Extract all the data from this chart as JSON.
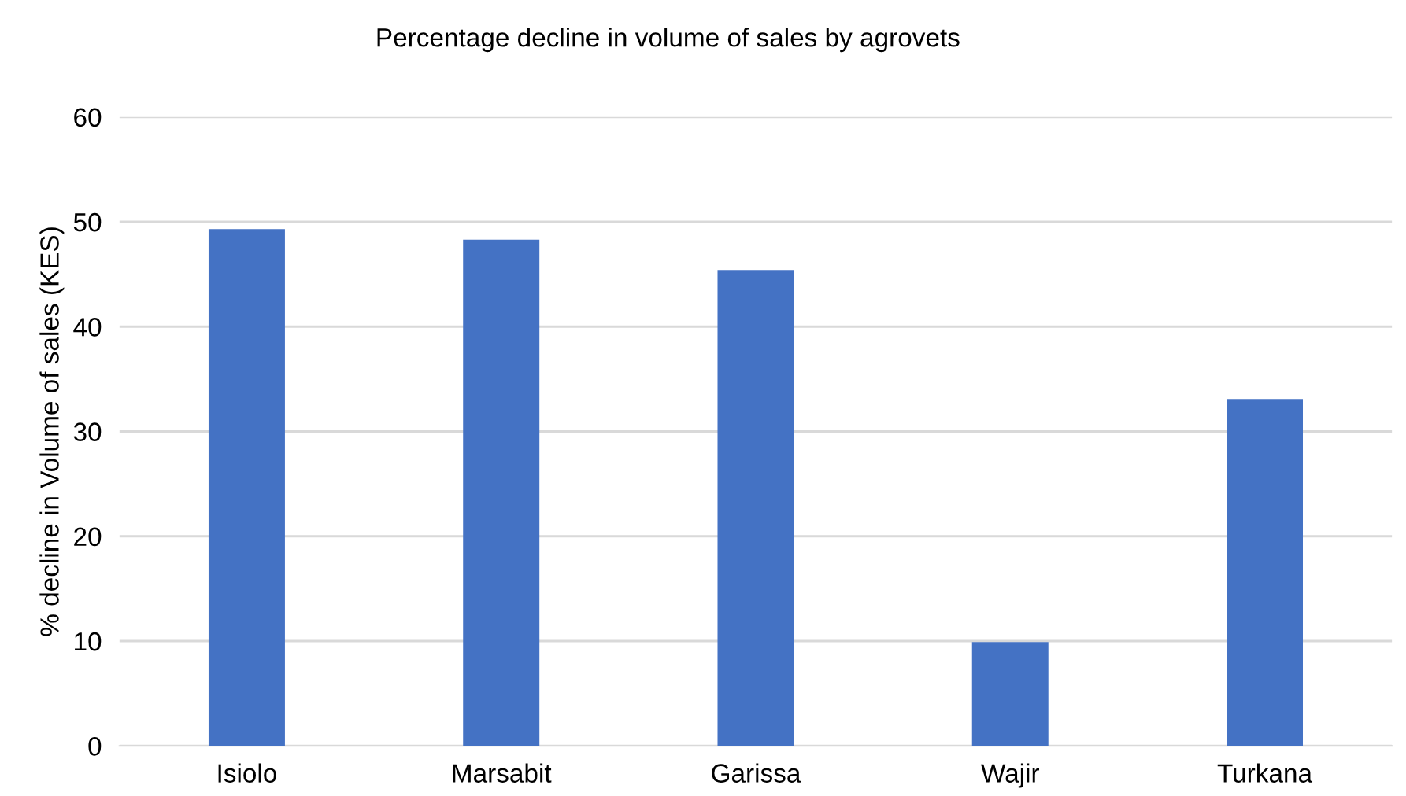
{
  "chart_data": {
    "type": "bar",
    "title": "Percentage decline in volume of sales by agrovets",
    "ylabel": "% decline in Volume of sales (KES)",
    "categories": [
      "Isiolo",
      "Marsabit",
      "Garissa",
      "Wajir",
      "Turkana"
    ],
    "values": [
      49.3,
      48.3,
      45.4,
      9.9,
      33.1
    ],
    "color": "#4472c4",
    "ylim": [
      0,
      60
    ],
    "yticks": [
      0,
      10,
      20,
      30,
      40,
      50,
      60
    ],
    "grid": "y"
  }
}
